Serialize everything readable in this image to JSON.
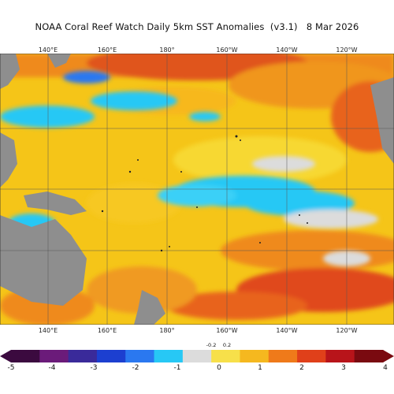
{
  "title": "NOAA Coral Reef Watch Daily 5km SST Anomalies  (v3.1)   8 Mar 2026",
  "map": {
    "region": "Pacific Ocean",
    "lon_labels": [
      "140°E",
      "160°E",
      "180°",
      "160°W",
      "140°W",
      "120°W"
    ],
    "colors": {
      "land": "#8e8e8e",
      "warm": "#f5c518",
      "hot": "#e8541a",
      "cool": "#27c8f5",
      "cold": "#2a6fd6",
      "neutral": "#d8d8d8"
    }
  },
  "colorbar": {
    "ticks": [
      "-5",
      "-4",
      "-3",
      "-2",
      "-1",
      "0",
      "1",
      "2",
      "3",
      "4"
    ],
    "small_ticks": [
      "-0.2",
      "0.2"
    ],
    "colors": [
      "#3b0a3f",
      "#6b1b7a",
      "#3a2a9a",
      "#1c3fd0",
      "#2a78f0",
      "#27c8f5",
      "#dcdcdc",
      "#f7e04a",
      "#f5b81f",
      "#ef7a1a",
      "#e0401a",
      "#b8141a",
      "#7a0a10"
    ]
  }
}
